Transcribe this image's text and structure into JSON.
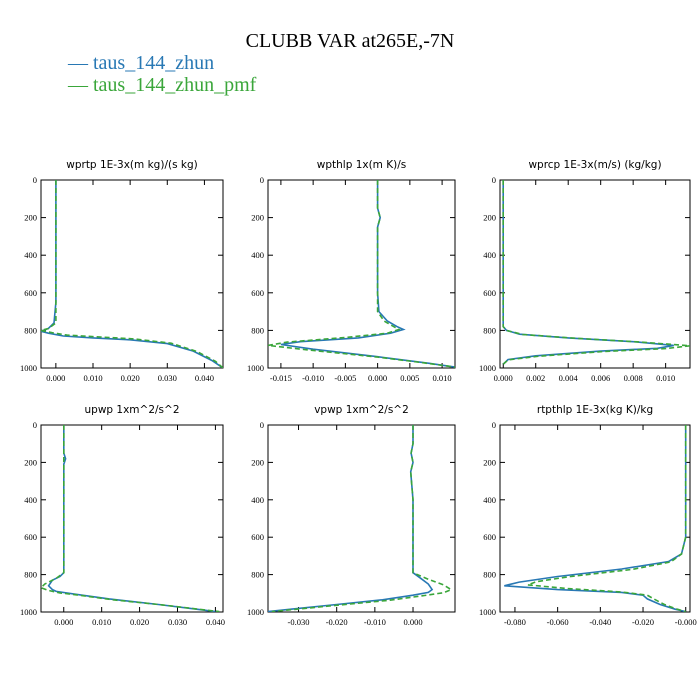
{
  "title": "CLUBB VAR at265E,-7N",
  "legend": [
    {
      "label": "taus_144_zhun",
      "color": "#2878b4",
      "dash": "solid"
    },
    {
      "label": "taus_144_zhun_pmf",
      "color": "#3aa63a",
      "dash": "dashed"
    }
  ],
  "chart_data": [
    {
      "type": "line",
      "title": "wprtp  1E-3x(m kg)/(s kg)",
      "xlim": [
        -0.004,
        0.045
      ],
      "ylim": [
        1000,
        0
      ],
      "xticks": [
        0.0,
        0.01,
        0.02,
        0.03,
        0.04
      ],
      "xtick_labels": [
        "0.000",
        "0.010",
        "0.020",
        "0.030",
        "0.040"
      ],
      "yticks": [
        0,
        200,
        400,
        600,
        800,
        1000
      ],
      "series": [
        {
          "name": "taus_144_zhun",
          "points": [
            [
              0.0,
              0
            ],
            [
              0.0,
              150
            ],
            [
              0.0,
              300
            ],
            [
              0.0,
              500
            ],
            [
              0.0,
              650
            ],
            [
              -0.0005,
              760
            ],
            [
              -0.002,
              790
            ],
            [
              -0.004,
              805
            ],
            [
              -0.002,
              815
            ],
            [
              0.002,
              830
            ],
            [
              0.01,
              840
            ],
            [
              0.02,
              850
            ],
            [
              0.03,
              870
            ],
            [
              0.037,
              910
            ],
            [
              0.042,
              960
            ],
            [
              0.045,
              1000
            ]
          ]
        },
        {
          "name": "taus_144_zhun_pmf",
          "points": [
            [
              0.0,
              0
            ],
            [
              0.0,
              150
            ],
            [
              0.0,
              300
            ],
            [
              0.0,
              500
            ],
            [
              0.0,
              650
            ],
            [
              0.0,
              760
            ],
            [
              -0.002,
              790
            ],
            [
              -0.004,
              800
            ],
            [
              -0.001,
              812
            ],
            [
              0.003,
              825
            ],
            [
              0.012,
              835
            ],
            [
              0.021,
              845
            ],
            [
              0.031,
              868
            ],
            [
              0.038,
              912
            ],
            [
              0.043,
              965
            ],
            [
              0.045,
              1000
            ]
          ]
        }
      ]
    },
    {
      "type": "line",
      "title": "wpthlp  1x(m K)/s",
      "xlim": [
        -0.017,
        0.012
      ],
      "ylim": [
        1000,
        0
      ],
      "xticks": [
        -0.015,
        -0.01,
        -0.005,
        0.0,
        0.005,
        0.01
      ],
      "xtick_labels": [
        "-0.015",
        "-0.010",
        "-0.005",
        "0.000",
        "0.005",
        "0.010"
      ],
      "yticks": [
        0,
        200,
        400,
        600,
        800,
        1000
      ],
      "series": [
        {
          "name": "taus_144_zhun",
          "points": [
            [
              0.0,
              0
            ],
            [
              0.0,
              100
            ],
            [
              0.0,
              150
            ],
            [
              0.0004,
              200
            ],
            [
              0.0,
              250
            ],
            [
              0.0,
              400
            ],
            [
              0.0,
              600
            ],
            [
              0.0002,
              700
            ],
            [
              0.0015,
              750
            ],
            [
              0.003,
              780
            ],
            [
              0.004,
              795
            ],
            [
              0.002,
              815
            ],
            [
              -0.003,
              840
            ],
            [
              -0.012,
              860
            ],
            [
              -0.015,
              875
            ],
            [
              -0.01,
              900
            ],
            [
              0.0,
              940
            ],
            [
              0.008,
              975
            ],
            [
              0.012,
              995
            ]
          ]
        },
        {
          "name": "taus_144_zhun_pmf",
          "points": [
            [
              0.0,
              0
            ],
            [
              0.0,
              100
            ],
            [
              0.0,
              150
            ],
            [
              0.0004,
              200
            ],
            [
              0.0,
              250
            ],
            [
              0.0,
              400
            ],
            [
              0.0,
              600
            ],
            [
              0.0,
              700
            ],
            [
              0.001,
              750
            ],
            [
              0.0025,
              780
            ],
            [
              0.0033,
              795
            ],
            [
              0.0015,
              815
            ],
            [
              -0.005,
              838
            ],
            [
              -0.014,
              862
            ],
            [
              -0.017,
              880
            ],
            [
              -0.011,
              903
            ],
            [
              0.0,
              942
            ],
            [
              0.007,
              972
            ],
            [
              0.012,
              995
            ]
          ]
        }
      ]
    },
    {
      "type": "line",
      "title": "wprcp  1E-3x(m/s) (kg/kg)",
      "xlim": [
        -0.0002,
        0.0115
      ],
      "ylim": [
        1000,
        0
      ],
      "xticks": [
        0.0,
        0.002,
        0.004,
        0.006,
        0.008,
        0.01
      ],
      "xtick_labels": [
        "0.000",
        "0.002",
        "0.004",
        "0.006",
        "0.008",
        "0.010"
      ],
      "yticks": [
        0,
        200,
        400,
        600,
        800,
        1000
      ],
      "series": [
        {
          "name": "taus_144_zhun",
          "points": [
            [
              0.0,
              0
            ],
            [
              0.0,
              700
            ],
            [
              0.0,
              780
            ],
            [
              0.0002,
              800
            ],
            [
              0.001,
              820
            ],
            [
              0.004,
              840
            ],
            [
              0.008,
              860
            ],
            [
              0.0105,
              880
            ],
            [
              0.0095,
              895
            ],
            [
              0.006,
              910
            ],
            [
              0.002,
              935
            ],
            [
              0.0003,
              955
            ],
            [
              0.0,
              980
            ]
          ]
        },
        {
          "name": "taus_144_zhun_pmf",
          "points": [
            [
              0.0,
              0
            ],
            [
              0.0,
              700
            ],
            [
              0.0,
              780
            ],
            [
              0.0002,
              800
            ],
            [
              0.0012,
              822
            ],
            [
              0.0045,
              842
            ],
            [
              0.0085,
              862
            ],
            [
              0.0115,
              882
            ],
            [
              0.01,
              897
            ],
            [
              0.0062,
              912
            ],
            [
              0.0022,
              937
            ],
            [
              0.0003,
              957
            ],
            [
              0.0,
              980
            ]
          ]
        }
      ]
    },
    {
      "type": "line",
      "title": "upwp  1xm^2/s^2",
      "xlim": [
        -0.006,
        0.042
      ],
      "ylim": [
        1000,
        0
      ],
      "xticks": [
        0.0,
        0.01,
        0.02,
        0.03,
        0.04
      ],
      "xtick_labels": [
        "0.000",
        "0.010",
        "0.020",
        "0.030",
        "0.040"
      ],
      "yticks": [
        0,
        200,
        400,
        600,
        800,
        1000
      ],
      "series": [
        {
          "name": "taus_144_zhun",
          "points": [
            [
              0.0,
              0
            ],
            [
              0.0,
              150
            ],
            [
              0.0005,
              180
            ],
            [
              0.0,
              210
            ],
            [
              0.0,
              400
            ],
            [
              0.0,
              600
            ],
            [
              0.0,
              790
            ],
            [
              -0.001,
              810
            ],
            [
              -0.003,
              830
            ],
            [
              -0.004,
              860
            ],
            [
              -0.003,
              880
            ],
            [
              -0.002,
              890
            ],
            [
              0.003,
              905
            ],
            [
              0.012,
              930
            ],
            [
              0.025,
              960
            ],
            [
              0.035,
              985
            ],
            [
              0.04,
              998
            ]
          ]
        },
        {
          "name": "taus_144_zhun_pmf",
          "points": [
            [
              0.0,
              0
            ],
            [
              0.0,
              150
            ],
            [
              0.0,
              180
            ],
            [
              0.0,
              210
            ],
            [
              0.0,
              400
            ],
            [
              0.0,
              600
            ],
            [
              0.0,
              790
            ],
            [
              -0.002,
              820
            ],
            [
              -0.005,
              850
            ],
            [
              -0.006,
              870
            ],
            [
              -0.004,
              885
            ],
            [
              -0.001,
              898
            ],
            [
              0.004,
              910
            ],
            [
              0.013,
              935
            ],
            [
              0.026,
              962
            ],
            [
              0.036,
              986
            ],
            [
              0.041,
              998
            ]
          ]
        }
      ]
    },
    {
      "type": "line",
      "title": "vpwp  1xm^2/s^2",
      "xlim": [
        -0.038,
        0.011
      ],
      "ylim": [
        1000,
        0
      ],
      "xticks": [
        -0.03,
        -0.02,
        -0.01,
        0.0
      ],
      "xtick_labels": [
        "-0.030",
        "-0.020",
        "-0.010",
        "0.000"
      ],
      "yticks": [
        0,
        200,
        400,
        600,
        800,
        1000
      ],
      "series": [
        {
          "name": "taus_144_zhun",
          "points": [
            [
              0.0,
              0
            ],
            [
              0.0,
              100
            ],
            [
              -0.0005,
              150
            ],
            [
              0.0,
              200
            ],
            [
              -0.0006,
              250
            ],
            [
              0.0,
              400
            ],
            [
              0.0,
              600
            ],
            [
              0.0,
              790
            ],
            [
              0.002,
              820
            ],
            [
              0.004,
              850
            ],
            [
              0.005,
              880
            ],
            [
              0.004,
              895
            ],
            [
              0.0,
              910
            ],
            [
              -0.008,
              935
            ],
            [
              -0.02,
              960
            ],
            [
              -0.032,
              985
            ],
            [
              -0.038,
              998
            ]
          ]
        },
        {
          "name": "taus_144_zhun_pmf",
          "points": [
            [
              0.0,
              0
            ],
            [
              0.0,
              100
            ],
            [
              -0.0005,
              150
            ],
            [
              0.0,
              200
            ],
            [
              -0.0006,
              250
            ],
            [
              0.0,
              400
            ],
            [
              0.0,
              600
            ],
            [
              0.0,
              790
            ],
            [
              0.004,
              825
            ],
            [
              0.008,
              855
            ],
            [
              0.01,
              880
            ],
            [
              0.008,
              897
            ],
            [
              0.003,
              912
            ],
            [
              -0.006,
              937
            ],
            [
              -0.019,
              962
            ],
            [
              -0.031,
              986
            ],
            [
              -0.037,
              998
            ]
          ]
        }
      ]
    },
    {
      "type": "line",
      "title": "rtpthlp  1E-3x(kg K)/kg",
      "xlim": [
        -0.087,
        0.002
      ],
      "ylim": [
        1000,
        0
      ],
      "xticks": [
        -0.08,
        -0.06,
        -0.04,
        -0.02,
        0.0
      ],
      "xtick_labels": [
        "-0.080",
        "-0.060",
        "-0.040",
        "-0.020",
        "-0.000"
      ],
      "yticks": [
        0,
        200,
        400,
        600,
        800,
        1000
      ],
      "series": [
        {
          "name": "taus_144_zhun",
          "points": [
            [
              0.0,
              0
            ],
            [
              0.0,
              400
            ],
            [
              0.0,
              600
            ],
            [
              -0.002,
              690
            ],
            [
              -0.008,
              730
            ],
            [
              -0.03,
              770
            ],
            [
              -0.06,
              810
            ],
            [
              -0.078,
              840
            ],
            [
              -0.085,
              860
            ],
            [
              -0.06,
              880
            ],
            [
              -0.03,
              895
            ],
            [
              -0.02,
              910
            ],
            [
              -0.018,
              930
            ],
            [
              -0.012,
              960
            ],
            [
              -0.005,
              985
            ],
            [
              0.0,
              998
            ]
          ]
        },
        {
          "name": "taus_144_zhun_pmf",
          "points": [
            [
              0.0,
              0
            ],
            [
              0.0,
              400
            ],
            [
              0.0,
              600
            ],
            [
              -0.002,
              690
            ],
            [
              -0.007,
              732
            ],
            [
              -0.025,
              772
            ],
            [
              -0.055,
              812
            ],
            [
              -0.07,
              838
            ],
            [
              -0.074,
              855
            ],
            [
              -0.055,
              875
            ],
            [
              -0.03,
              893
            ],
            [
              -0.018,
              910
            ],
            [
              -0.015,
              930
            ],
            [
              -0.01,
              960
            ],
            [
              -0.004,
              985
            ],
            [
              0.0,
              998
            ]
          ]
        }
      ]
    }
  ]
}
